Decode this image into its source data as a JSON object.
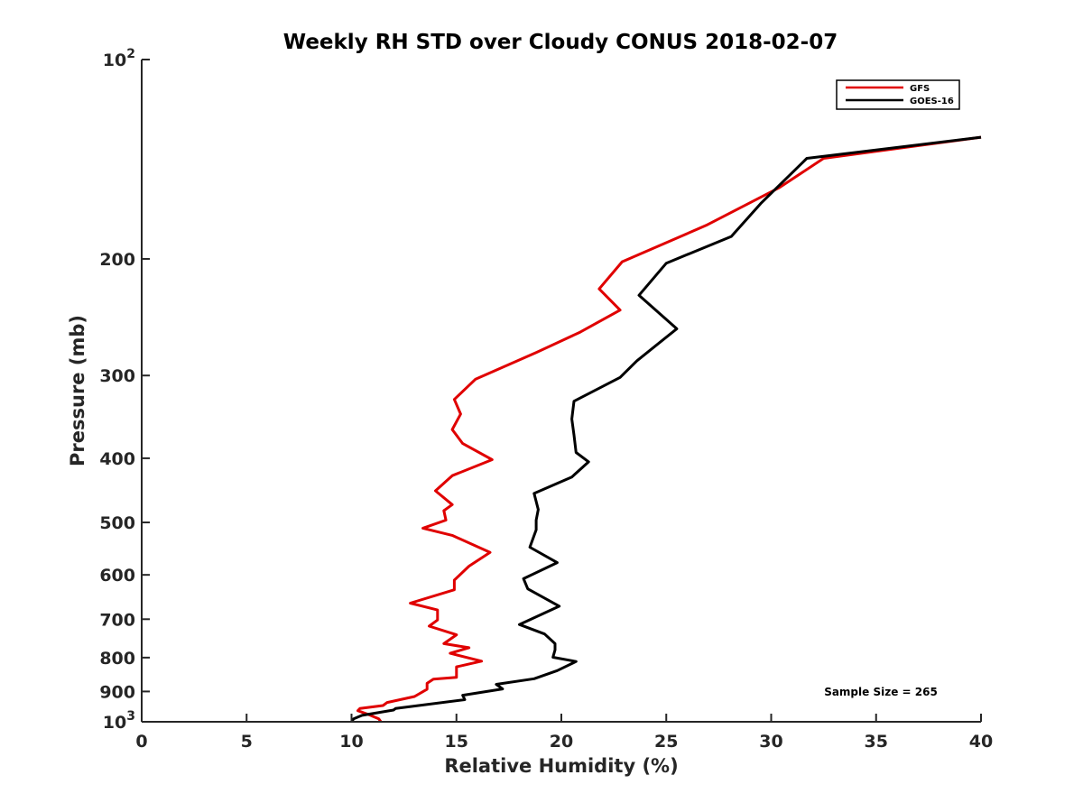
{
  "chart_data": {
    "type": "line",
    "title": "Weekly RH STD over Cloudy CONUS 2018-02-07",
    "xlabel": "Relative Humidity (%)",
    "ylabel": "Pressure (mb)",
    "xlim": [
      0,
      40
    ],
    "ylim": [
      100,
      1000
    ],
    "y_scale": "log",
    "y_reversed": true,
    "grid": false,
    "legend_position": "top-right",
    "x_ticks": [
      0,
      5,
      10,
      15,
      20,
      25,
      30,
      35,
      40
    ],
    "x_tick_labels": [
      "0",
      "5",
      "10",
      "15",
      "20",
      "25",
      "30",
      "35",
      "40"
    ],
    "y_ticks": [
      {
        "value": 100,
        "base": "10",
        "exp": "2"
      },
      {
        "value": 200,
        "label": "200"
      },
      {
        "value": 300,
        "label": "300"
      },
      {
        "value": 400,
        "label": "400"
      },
      {
        "value": 500,
        "label": "500"
      },
      {
        "value": 600,
        "label": "600"
      },
      {
        "value": 700,
        "label": "700"
      },
      {
        "value": 800,
        "label": "800"
      },
      {
        "value": 900,
        "label": "900"
      },
      {
        "value": 1000,
        "base": "10",
        "exp": "3"
      }
    ],
    "annotation": "Sample Size = 265",
    "series": [
      {
        "name": "GFS",
        "color": "#e00000",
        "points": [
          [
            11.4,
            1000
          ],
          [
            11.3,
            990
          ],
          [
            10.8,
            975
          ],
          [
            10.3,
            962
          ],
          [
            10.4,
            955
          ],
          [
            11.5,
            945
          ],
          [
            11.7,
            935
          ],
          [
            13.0,
            916
          ],
          [
            13.6,
            893
          ],
          [
            13.6,
            875
          ],
          [
            13.9,
            862
          ],
          [
            15.0,
            857
          ],
          [
            15.0,
            826
          ],
          [
            16.2,
            810
          ],
          [
            14.7,
            788
          ],
          [
            15.6,
            773
          ],
          [
            14.4,
            762
          ],
          [
            15.0,
            739
          ],
          [
            13.7,
            717
          ],
          [
            14.1,
            702
          ],
          [
            14.1,
            678
          ],
          [
            12.8,
            662
          ],
          [
            14.9,
            632
          ],
          [
            14.9,
            611
          ],
          [
            15.6,
            582
          ],
          [
            16.6,
            555
          ],
          [
            14.8,
            523
          ],
          [
            13.4,
            510
          ],
          [
            14.5,
            496
          ],
          [
            14.4,
            480
          ],
          [
            14.8,
            470
          ],
          [
            14.0,
            448
          ],
          [
            14.8,
            425
          ],
          [
            16.7,
            402
          ],
          [
            15.3,
            380
          ],
          [
            14.8,
            362
          ],
          [
            15.2,
            343
          ],
          [
            14.9,
            326
          ],
          [
            15.9,
            304
          ],
          [
            18.8,
            277
          ],
          [
            20.9,
            258
          ],
          [
            22.8,
            239
          ],
          [
            21.8,
            222
          ],
          [
            22.9,
            202
          ],
          [
            26.9,
            178
          ],
          [
            30.4,
            156
          ],
          [
            32.5,
            141
          ],
          [
            40.0,
            131
          ]
        ]
      },
      {
        "name": "GOES-16",
        "color": "#000000",
        "points": [
          [
            10.0,
            1000
          ],
          [
            10.1,
            990
          ],
          [
            10.5,
            978
          ],
          [
            12.0,
            960
          ],
          [
            12.1,
            955
          ],
          [
            15.4,
            926
          ],
          [
            15.3,
            912
          ],
          [
            17.2,
            892
          ],
          [
            16.9,
            878
          ],
          [
            18.7,
            861
          ],
          [
            19.8,
            837
          ],
          [
            20.7,
            811
          ],
          [
            19.6,
            799
          ],
          [
            19.7,
            779
          ],
          [
            19.7,
            762
          ],
          [
            19.2,
            737
          ],
          [
            18.0,
            713
          ],
          [
            19.9,
            669
          ],
          [
            18.4,
            630
          ],
          [
            18.2,
            608
          ],
          [
            19.8,
            575
          ],
          [
            18.5,
            545
          ],
          [
            18.8,
            513
          ],
          [
            18.8,
            496
          ],
          [
            18.9,
            478
          ],
          [
            18.7,
            452
          ],
          [
            20.5,
            427
          ],
          [
            21.3,
            405
          ],
          [
            20.7,
            392
          ],
          [
            20.6,
            369
          ],
          [
            20.5,
            349
          ],
          [
            20.6,
            328
          ],
          [
            22.8,
            302
          ],
          [
            23.6,
            285
          ],
          [
            25.5,
            255
          ],
          [
            23.7,
            227
          ],
          [
            25.0,
            203
          ],
          [
            28.1,
            185
          ],
          [
            29.5,
            165
          ],
          [
            31.7,
            141
          ],
          [
            40.0,
            131
          ]
        ]
      }
    ]
  }
}
